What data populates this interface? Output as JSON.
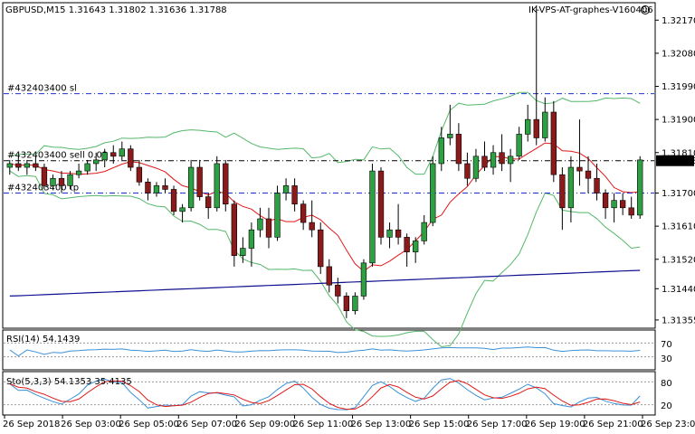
{
  "header": {
    "symbol_line": "GBPUSD,M15  1.31643 1.31802 1.31636 1.31788",
    "account_label": "IK-VPS-AT-graphes-V160406"
  },
  "colors": {
    "bull": "#2ea043",
    "bear": "#8b1a1a",
    "bands": "#55b86a",
    "ma_red": "#e01818",
    "ma_blue": "#101090",
    "level_blue": "#1a2fd0",
    "rsi": "#3a8fd6",
    "sto_main": "#3a8fd6",
    "sto_signal": "#e01818",
    "price_tag_bg": "#000000"
  },
  "levels": [
    {
      "name": "sl-line",
      "label": "#432403400 sl",
      "price": 1.3197,
      "style": "dash-dot",
      "color": "#1a2fd0"
    },
    {
      "name": "sell-line",
      "label": "#432403400 sell 0.02",
      "price": 1.31788,
      "style": "dash-dot",
      "color": "#000000"
    },
    {
      "name": "tp-line",
      "label": "#432403400 tp",
      "price": 1.317,
      "style": "dash-dot",
      "color": "#1a2fd0"
    }
  ],
  "current_price_label": "1.31788",
  "rsi": {
    "label": "RSI(14) 54.1439",
    "levels": [
      "70",
      "30"
    ]
  },
  "sto": {
    "label": "Sto(5,3,3) 54.1353 35.4135",
    "levels": [
      "80",
      "20"
    ]
  },
  "chart_data": {
    "type": "candlestick",
    "symbol": "GBPUSD",
    "timeframe": "M15",
    "ylim": [
      1.3134,
      1.3221
    ],
    "y_ticks": [
      "1.32170",
      "1.32080",
      "1.31990",
      "1.31900",
      "1.31810",
      "1.31700",
      "1.31610",
      "1.31520",
      "1.31440",
      "1.31355"
    ],
    "x_ticks": [
      "26 Sep 2018",
      "26 Sep 03:00",
      "26 Sep 05:00",
      "26 Sep 07:00",
      "26 Sep 09:00",
      "26 Sep 11:00",
      "26 Sep 13:00",
      "26 Sep 15:00",
      "26 Sep 17:00",
      "26 Sep 19:00",
      "26 Sep 21:00",
      "26 Sep 23:00"
    ],
    "candles": [
      [
        1.3177,
        1.3179,
        1.3175,
        1.3178
      ],
      [
        1.3178,
        1.318,
        1.3176,
        1.3177
      ],
      [
        1.3177,
        1.3179,
        1.3175,
        1.3178
      ],
      [
        1.3178,
        1.318,
        1.3176,
        1.3177
      ],
      [
        1.3177,
        1.3178,
        1.3171,
        1.3172
      ],
      [
        1.3172,
        1.3175,
        1.3171,
        1.3174
      ],
      [
        1.3174,
        1.3176,
        1.317,
        1.3172
      ],
      [
        1.3172,
        1.3176,
        1.3171,
        1.3175
      ],
      [
        1.3175,
        1.3178,
        1.3174,
        1.3176
      ],
      [
        1.3176,
        1.3179,
        1.3175,
        1.3178
      ],
      [
        1.3178,
        1.3181,
        1.3176,
        1.3179
      ],
      [
        1.3179,
        1.3182,
        1.3177,
        1.3181
      ],
      [
        1.3181,
        1.3183,
        1.3178,
        1.318
      ],
      [
        1.318,
        1.3184,
        1.3179,
        1.3182
      ],
      [
        1.3182,
        1.3183,
        1.3176,
        1.3177
      ],
      [
        1.3177,
        1.3179,
        1.3172,
        1.3173
      ],
      [
        1.3173,
        1.3174,
        1.3168,
        1.317
      ],
      [
        1.317,
        1.3173,
        1.3169,
        1.3172
      ],
      [
        1.3172,
        1.3174,
        1.317,
        1.3171
      ],
      [
        1.3171,
        1.3172,
        1.3164,
        1.3165
      ],
      [
        1.3165,
        1.3167,
        1.3162,
        1.3166
      ],
      [
        1.3166,
        1.3179,
        1.3165,
        1.3177
      ],
      [
        1.3177,
        1.3179,
        1.3168,
        1.3169
      ],
      [
        1.3169,
        1.317,
        1.3163,
        1.3166
      ],
      [
        1.3166,
        1.318,
        1.3165,
        1.3178
      ],
      [
        1.3178,
        1.3179,
        1.3165,
        1.3167
      ],
      [
        1.3167,
        1.3168,
        1.315,
        1.3153
      ],
      [
        1.3153,
        1.3158,
        1.3151,
        1.3155
      ],
      [
        1.3155,
        1.3162,
        1.315,
        1.316
      ],
      [
        1.316,
        1.3166,
        1.3158,
        1.3163
      ],
      [
        1.3163,
        1.3166,
        1.3155,
        1.3158
      ],
      [
        1.3158,
        1.3172,
        1.3157,
        1.317
      ],
      [
        1.317,
        1.3174,
        1.3168,
        1.3172
      ],
      [
        1.3172,
        1.3174,
        1.3165,
        1.3167
      ],
      [
        1.3167,
        1.3168,
        1.316,
        1.3162
      ],
      [
        1.3162,
        1.3168,
        1.3158,
        1.316
      ],
      [
        1.316,
        1.3162,
        1.3148,
        1.315
      ],
      [
        1.315,
        1.3152,
        1.3143,
        1.3145
      ],
      [
        1.3145,
        1.3147,
        1.314,
        1.3142
      ],
      [
        1.3142,
        1.3143,
        1.3136,
        1.3138
      ],
      [
        1.3138,
        1.3143,
        1.3137,
        1.3142
      ],
      [
        1.3142,
        1.3152,
        1.3141,
        1.3151
      ],
      [
        1.3151,
        1.3178,
        1.315,
        1.3176
      ],
      [
        1.3176,
        1.3177,
        1.3156,
        1.3158
      ],
      [
        1.3158,
        1.3162,
        1.3155,
        1.316
      ],
      [
        1.316,
        1.3167,
        1.3156,
        1.3158
      ],
      [
        1.3158,
        1.3159,
        1.315,
        1.3154
      ],
      [
        1.3154,
        1.3158,
        1.3151,
        1.3157
      ],
      [
        1.3157,
        1.3164,
        1.3156,
        1.3162
      ],
      [
        1.3162,
        1.318,
        1.3161,
        1.3178
      ],
      [
        1.3178,
        1.3188,
        1.3176,
        1.3185
      ],
      [
        1.3185,
        1.3194,
        1.3183,
        1.3186
      ],
      [
        1.3186,
        1.3189,
        1.3176,
        1.3178
      ],
      [
        1.3178,
        1.3181,
        1.3172,
        1.3174
      ],
      [
        1.3174,
        1.3182,
        1.3173,
        1.318
      ],
      [
        1.318,
        1.3184,
        1.3176,
        1.3177
      ],
      [
        1.3177,
        1.3183,
        1.3175,
        1.3181
      ],
      [
        1.3181,
        1.3186,
        1.3176,
        1.3178
      ],
      [
        1.3178,
        1.3182,
        1.3173,
        1.318
      ],
      [
        1.318,
        1.3188,
        1.3179,
        1.3186
      ],
      [
        1.3186,
        1.3194,
        1.3184,
        1.319
      ],
      [
        1.319,
        1.3221,
        1.3183,
        1.3185
      ],
      [
        1.3185,
        1.3196,
        1.3184,
        1.3192
      ],
      [
        1.3192,
        1.3195,
        1.3173,
        1.3175
      ],
      [
        1.3175,
        1.3177,
        1.316,
        1.3166
      ],
      [
        1.3166,
        1.318,
        1.3162,
        1.3177
      ],
      [
        1.3177,
        1.319,
        1.3172,
        1.3176
      ],
      [
        1.3176,
        1.318,
        1.317,
        1.3174
      ],
      [
        1.3174,
        1.3178,
        1.3168,
        1.317
      ],
      [
        1.317,
        1.3171,
        1.3163,
        1.3166
      ],
      [
        1.3166,
        1.317,
        1.3162,
        1.3168
      ],
      [
        1.3168,
        1.317,
        1.3164,
        1.3166
      ],
      [
        1.3166,
        1.3169,
        1.3163,
        1.3164
      ],
      [
        1.3164,
        1.318,
        1.3163,
        1.3179
      ]
    ]
  }
}
